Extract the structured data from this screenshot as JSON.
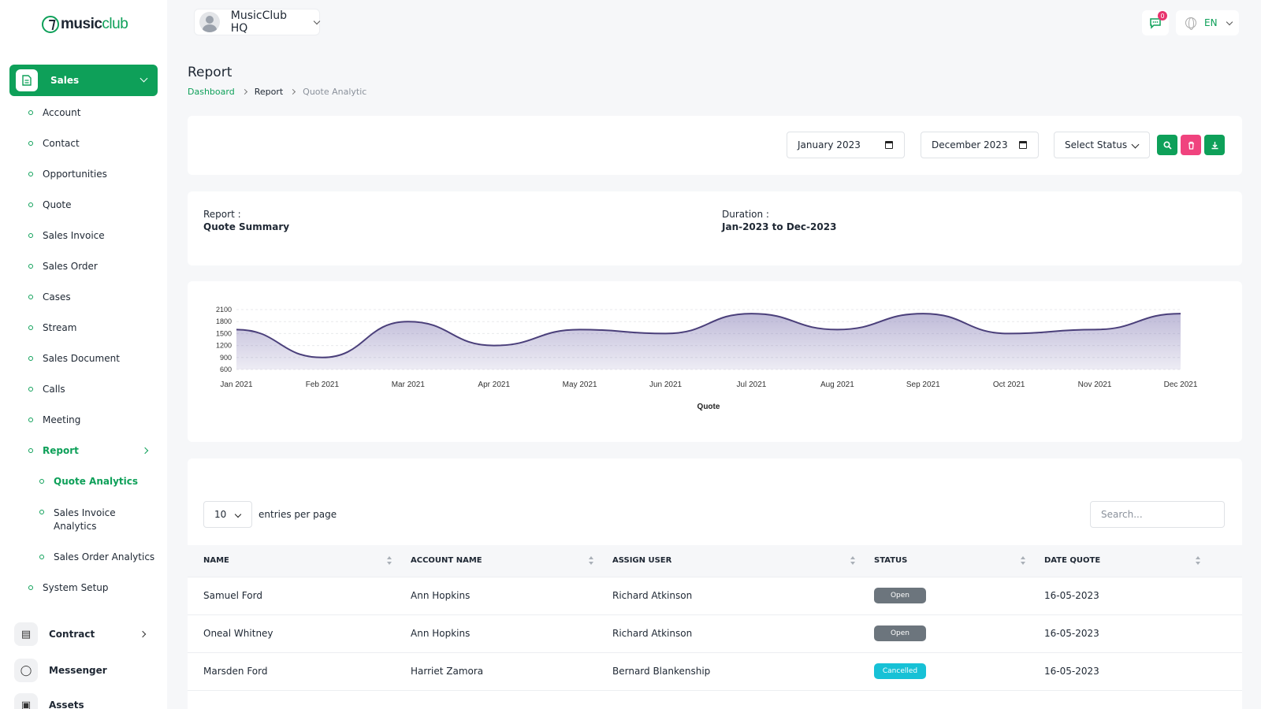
{
  "app": {
    "logo_part1": "music",
    "logo_part2": "club"
  },
  "sidebar": {
    "sales_label": "Sales",
    "items": [
      "Account",
      "Contact",
      "Opportunities",
      "Quote",
      "Sales Invoice",
      "Sales Order",
      "Cases",
      "Stream",
      "Sales Document",
      "Calls",
      "Meeting"
    ],
    "report_label": "Report",
    "sub_items": [
      "Quote Analytics",
      "Sales Invoice",
      "Analytics",
      "Sales Order Analytics"
    ],
    "system_setup": "System Setup",
    "contract": "Contract",
    "messenger": "Messenger",
    "assets": "Assets"
  },
  "topbar": {
    "workspace": "MusicClub HQ",
    "message_count": "0",
    "language": "EN"
  },
  "page": {
    "title": "Report",
    "breadcrumb": [
      "Dashboard",
      "Report",
      "Quote Analytic"
    ]
  },
  "filters": {
    "start": "January 2023",
    "end": "December 2023",
    "status": "Select Status"
  },
  "summary": {
    "report_label": "Report :",
    "report_value": "Quote Summary",
    "duration_label": "Duration :",
    "duration_value": "Jan-2023 to Dec-2023"
  },
  "chart_data": {
    "type": "area",
    "categories": [
      "Jan 2021",
      "Feb 2021",
      "Mar 2021",
      "Apr 2021",
      "May 2021",
      "Jun 2021",
      "Jul 2021",
      "Aug 2021",
      "Sep 2021",
      "Oct 2021",
      "Nov 2021",
      "Dec 2021"
    ],
    "series": [
      {
        "values": [
          1600,
          900,
          1800,
          1200,
          1600,
          1500,
          2000,
          1600,
          2000,
          1500,
          1600,
          2000
        ]
      }
    ],
    "xlabel": "Quote",
    "ylabel": "",
    "yticks": [
      2100,
      1800,
      1500,
      1200,
      900,
      600
    ],
    "ylim": [
      600,
      2100
    ],
    "colors": {
      "line": "#4a3f7a",
      "fill": "#8a82b8"
    }
  },
  "table": {
    "per_page": "10",
    "entries_label": "entries per page",
    "search_placeholder": "Search...",
    "columns": [
      "NAME",
      "ACCOUNT NAME",
      "ASSIGN USER",
      "STATUS",
      "DATE QUOTE"
    ],
    "rows": [
      {
        "name": "Samuel Ford",
        "account": "Ann Hopkins",
        "user": "Richard Atkinson",
        "status": "Open",
        "date": "16-05-2023"
      },
      {
        "name": "Oneal Whitney",
        "account": "Ann Hopkins",
        "user": "Richard Atkinson",
        "status": "Open",
        "date": "16-05-2023"
      },
      {
        "name": "Marsden Ford",
        "account": "Harriet Zamora",
        "user": "Bernard Blankenship",
        "status": "Cancelled",
        "date": "16-05-2023"
      }
    ],
    "status_colors": {
      "Open": "#6c757d",
      "Cancelled": "#17c1d6"
    }
  }
}
